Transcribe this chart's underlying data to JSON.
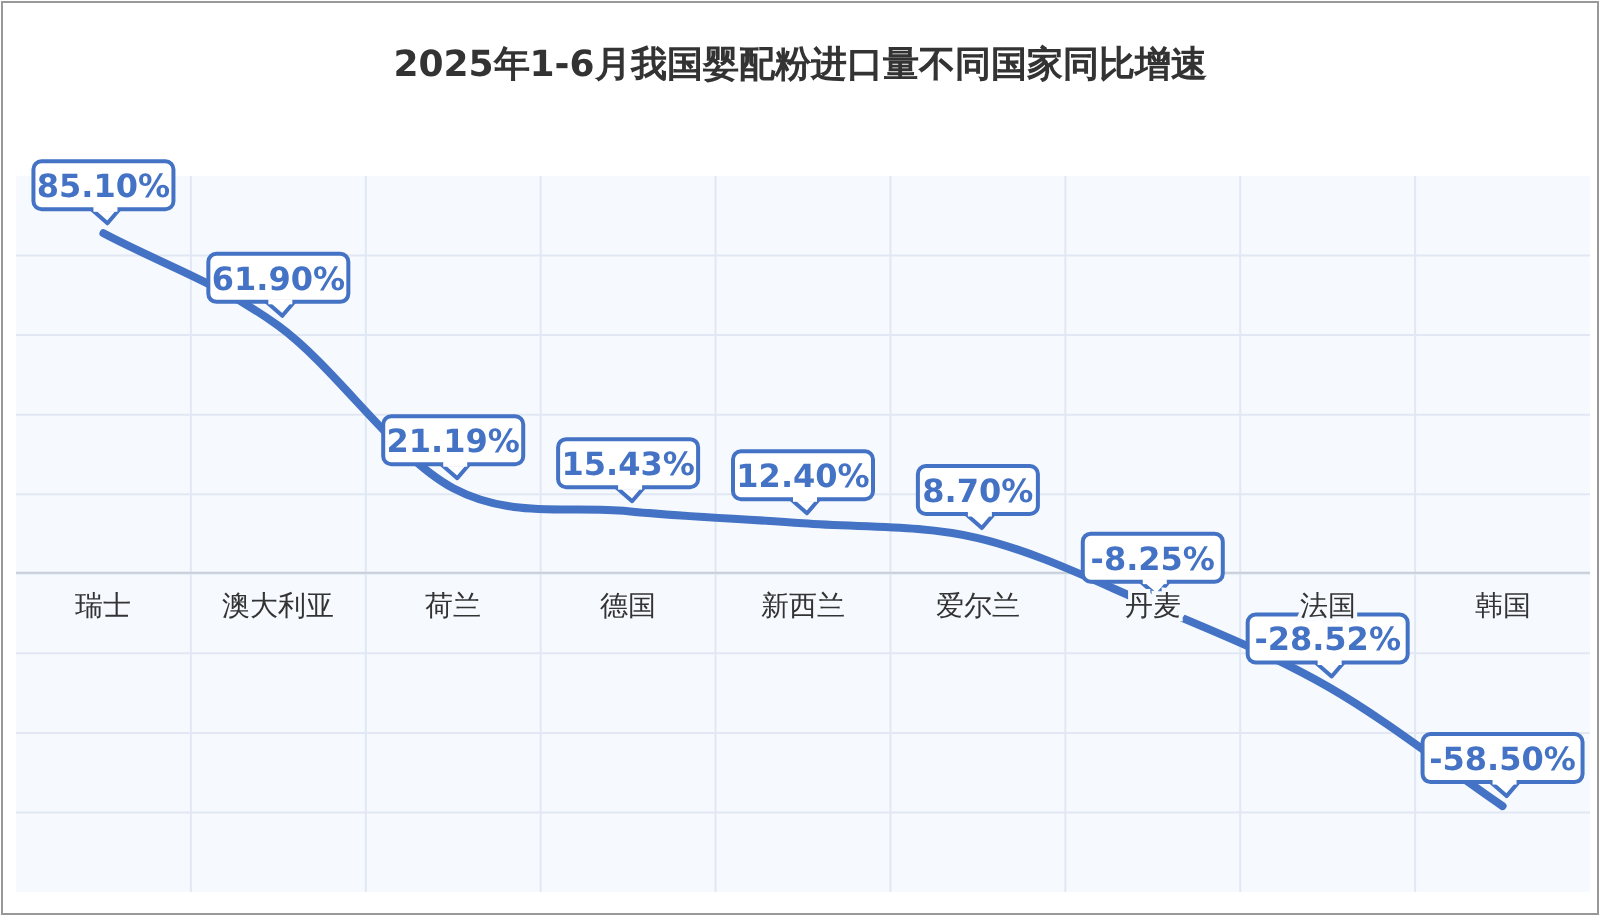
{
  "chart_data": {
    "type": "line",
    "title": "2025年1-6月我国婴配粉进口量不同国家同比增速",
    "categories": [
      "瑞士",
      "澳大利亚",
      "荷兰",
      "德国",
      "新西兰",
      "爱尔兰",
      "丹麦",
      "法国",
      "韩国"
    ],
    "series": [
      {
        "color": "#4472c4",
        "values": [
          85.1,
          61.9,
          21.19,
          15.43,
          12.4,
          8.7,
          -8.25,
          -28.52,
          -58.5
        ],
        "value_labels": [
          "85.10%",
          "61.90%",
          "21.19%",
          "15.43%",
          "12.40%",
          "8.70%",
          "-8.25%",
          "-28.52%",
          "-58.50%"
        ]
      }
    ],
    "grid": true,
    "marker": "none",
    "line_style": "solid"
  }
}
